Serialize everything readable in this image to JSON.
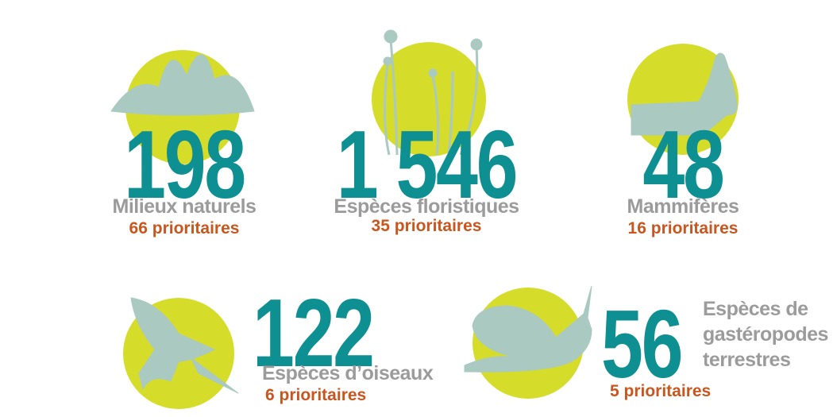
{
  "items": [
    {
      "number": "198",
      "label": "Milieux naturels",
      "priority": "66 prioritaires"
    },
    {
      "number": "1 546",
      "label": "Espèces floristiques",
      "priority": "35 prioritaires"
    },
    {
      "number": "48",
      "label": "Mammifères",
      "priority": "16 prioritaires"
    },
    {
      "number": "122",
      "label": "Espèces d’oiseaux",
      "priority": "6 prioritaires"
    },
    {
      "number": "56",
      "label": [
        "Espèces de",
        "gastéropodes",
        "terrestres"
      ],
      "priority": "5 prioritaires"
    }
  ]
}
